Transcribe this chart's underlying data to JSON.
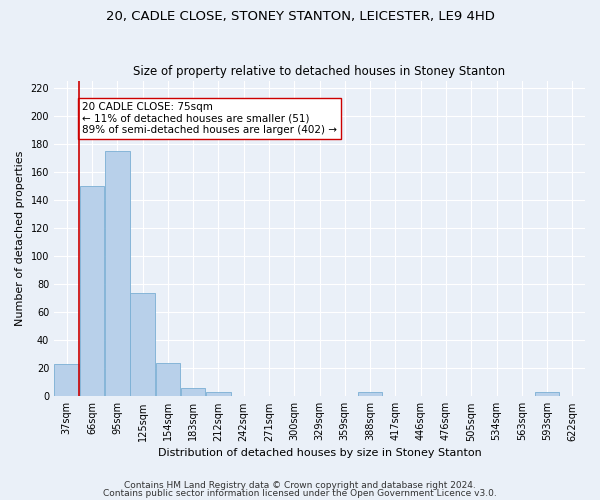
{
  "title": "20, CADLE CLOSE, STONEY STANTON, LEICESTER, LE9 4HD",
  "subtitle": "Size of property relative to detached houses in Stoney Stanton",
  "xlabel": "Distribution of detached houses by size in Stoney Stanton",
  "ylabel": "Number of detached properties",
  "categories": [
    "37sqm",
    "66sqm",
    "95sqm",
    "125sqm",
    "154sqm",
    "183sqm",
    "212sqm",
    "242sqm",
    "271sqm",
    "300sqm",
    "329sqm",
    "359sqm",
    "388sqm",
    "417sqm",
    "446sqm",
    "476sqm",
    "505sqm",
    "534sqm",
    "563sqm",
    "593sqm",
    "622sqm"
  ],
  "values": [
    23,
    150,
    175,
    74,
    24,
    6,
    3,
    0,
    0,
    0,
    0,
    0,
    3,
    0,
    0,
    0,
    0,
    0,
    0,
    3,
    0
  ],
  "bar_color": "#b8d0ea",
  "bar_edge_color": "#7aafd4",
  "vline_x": 0.5,
  "vline_color": "#cc0000",
  "annotation_text": "20 CADLE CLOSE: 75sqm\n← 11% of detached houses are smaller (51)\n89% of semi-detached houses are larger (402) →",
  "ylim": [
    0,
    225
  ],
  "yticks": [
    0,
    20,
    40,
    60,
    80,
    100,
    120,
    140,
    160,
    180,
    200,
    220
  ],
  "footer1": "Contains HM Land Registry data © Crown copyright and database right 2024.",
  "footer2": "Contains public sector information licensed under the Open Government Licence v3.0.",
  "title_fontsize": 9.5,
  "subtitle_fontsize": 8.5,
  "label_fontsize": 8,
  "tick_fontsize": 7,
  "footer_fontsize": 6.5,
  "ann_fontsize": 7.5,
  "bg_color": "#eaf0f8",
  "fig_bg_color": "#eaf0f8",
  "grid_color": "#ffffff"
}
